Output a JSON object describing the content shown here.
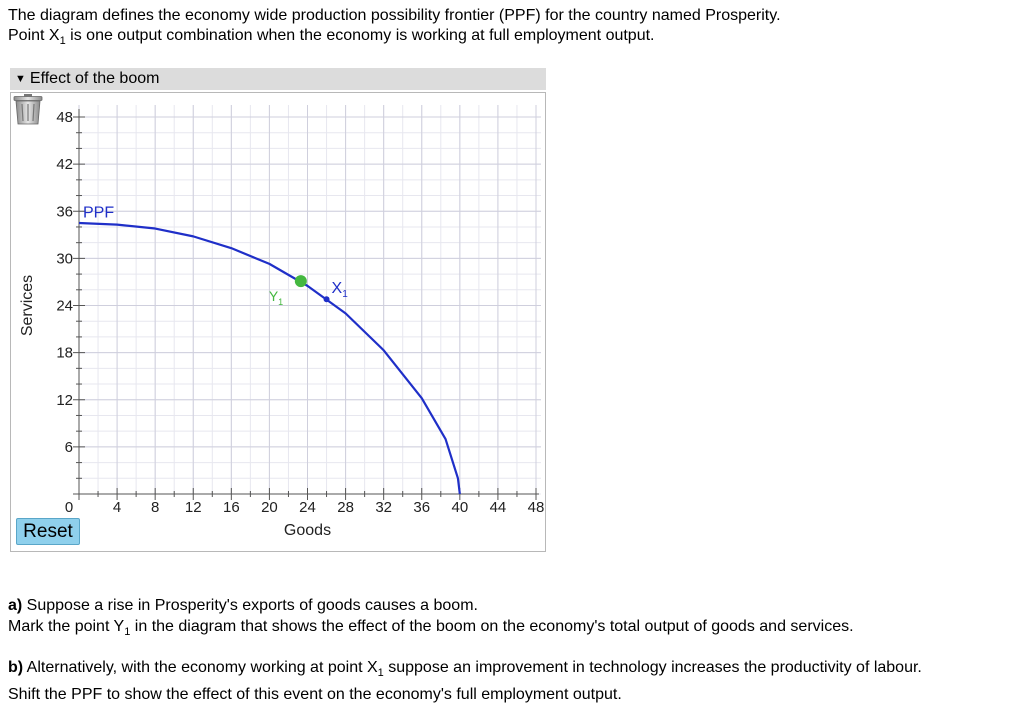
{
  "intro": {
    "line1": "The diagram defines the economy wide production possibility frontier (PPF) for the country named Prosperity.",
    "line2_prefix": "Point X",
    "line2_sub": "1",
    "line2_suffix": " is one output combination when the economy is working at full employment output."
  },
  "panel": {
    "title": "Effect of the boom",
    "toggle_icon": "triangle-down-icon",
    "reset_label": "Reset",
    "trash_icon": "trash-icon"
  },
  "chart_data": {
    "type": "line",
    "xlabel": "Goods",
    "ylabel": "Services",
    "xlim": [
      0,
      48
    ],
    "ylim": [
      0,
      48
    ],
    "x_ticks": [
      0,
      4,
      8,
      12,
      16,
      20,
      24,
      28,
      32,
      36,
      40,
      44,
      48
    ],
    "y_ticks": [
      6,
      12,
      18,
      24,
      30,
      36,
      42,
      48
    ],
    "grid": true,
    "series": [
      {
        "name": "PPF",
        "color": "#1f2fc8",
        "points": [
          [
            0,
            34.5
          ],
          [
            4,
            34.3
          ],
          [
            8,
            33.8
          ],
          [
            12,
            32.8
          ],
          [
            16,
            31.3
          ],
          [
            20,
            29.3
          ],
          [
            24,
            26.5
          ],
          [
            28,
            23.0
          ],
          [
            32,
            18.3
          ],
          [
            36,
            12.2
          ],
          [
            38.5,
            7.0
          ],
          [
            39.8,
            2.0
          ],
          [
            40,
            0
          ]
        ]
      }
    ],
    "points": [
      {
        "label": "X",
        "sub": "1",
        "x": 26,
        "y": 24.8,
        "color": "#1f2fc8"
      },
      {
        "label": "Y",
        "sub": "1",
        "x": 23.3,
        "y": 27.1,
        "color": "#44b840"
      }
    ]
  },
  "questions": {
    "a_label": "a)",
    "a_line1": " Suppose a rise in Prosperity's exports of goods causes a boom.",
    "a_line2_prefix": "Mark the point Y",
    "a_line2_sub": "1",
    "a_line2_suffix": " in the diagram that shows the effect of the boom on the economy's total output of goods and services.",
    "b_label": "b)",
    "b_line1_prefix": " Alternatively, with the economy working at point X",
    "b_line1_sub": "1",
    "b_line1_suffix": " suppose an improvement in technology increases the productivity of labour.",
    "b_line2": "Shift the PPF to show the effect of this event on the economy's full employment output."
  }
}
